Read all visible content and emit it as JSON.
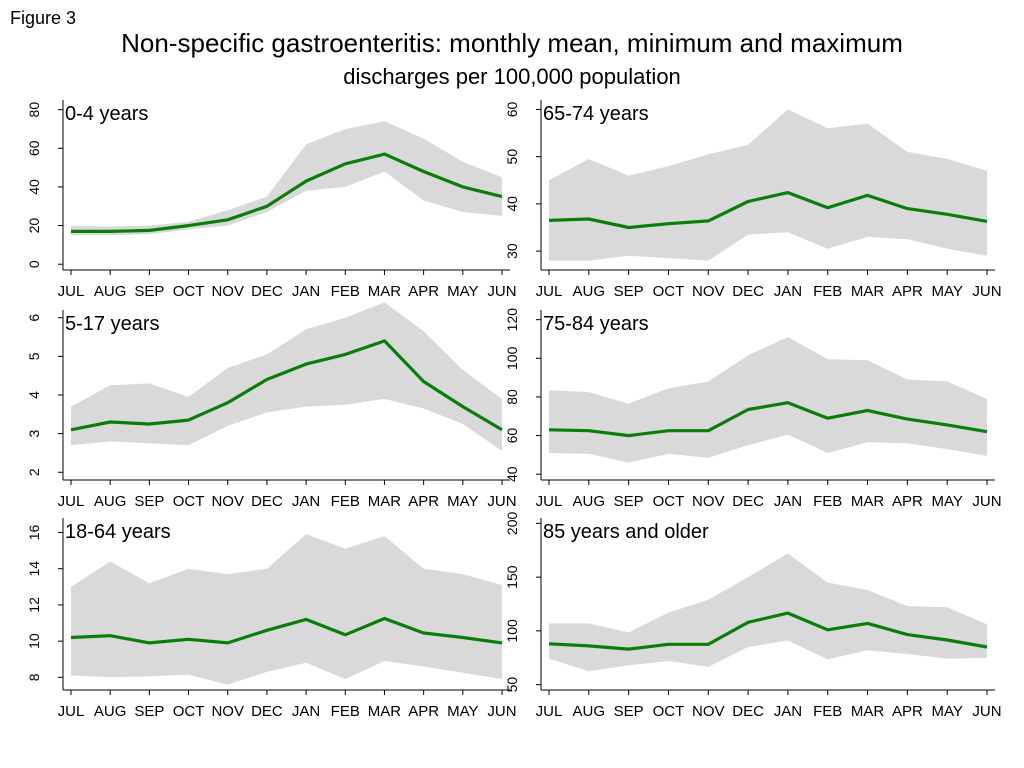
{
  "figure_label": "Figure 3",
  "title": "Non-specific gastroenteritis: monthly mean, minimum and maximum",
  "subtitle": "discharges per 100,000 population",
  "colors": {
    "mean_line": "#0a7d0a",
    "range_band": "#d9d9d9",
    "axis": "#000000"
  },
  "chart_data": [
    {
      "type": "line",
      "panel_label": "0-4 years",
      "categories": [
        "JUL",
        "AUG",
        "SEP",
        "OCT",
        "NOV",
        "DEC",
        "JAN",
        "FEB",
        "MAR",
        "APR",
        "MAY",
        "JUN"
      ],
      "yticks": [
        0,
        20,
        40,
        60,
        80
      ],
      "ylim": [
        -3,
        85
      ],
      "series": [
        {
          "role": "mean",
          "values": [
            17,
            17,
            17.5,
            20,
            23,
            30,
            43,
            52,
            57,
            48,
            40,
            35
          ]
        },
        {
          "role": "min",
          "values": [
            15,
            15,
            15.5,
            18,
            20,
            27,
            38,
            40,
            48,
            33,
            27,
            25
          ]
        },
        {
          "role": "max",
          "values": [
            20,
            19.5,
            20,
            22,
            28,
            35,
            62,
            70,
            74,
            65,
            53,
            45
          ]
        }
      ],
      "grid": false
    },
    {
      "type": "line",
      "panel_label": "65-74 years",
      "categories": [
        "JUL",
        "AUG",
        "SEP",
        "OCT",
        "NOV",
        "DEC",
        "JAN",
        "FEB",
        "MAR",
        "APR",
        "MAY",
        "JUN"
      ],
      "yticks": [
        30,
        40,
        50,
        60
      ],
      "ylim": [
        26,
        62
      ],
      "series": [
        {
          "role": "mean",
          "values": [
            36.5,
            36.8,
            35,
            35.8,
            36.4,
            40.5,
            42.4,
            39.2,
            41.8,
            39,
            37.8,
            36.3
          ]
        },
        {
          "role": "min",
          "values": [
            28,
            28,
            29,
            28.5,
            28,
            33.5,
            34,
            30.5,
            33,
            32.5,
            30.5,
            29
          ]
        },
        {
          "role": "max",
          "values": [
            45,
            49.5,
            46,
            48,
            50.5,
            52.5,
            60,
            56,
            57,
            51,
            49.5,
            47
          ]
        }
      ],
      "grid": false
    },
    {
      "type": "line",
      "panel_label": "5-17 years",
      "categories": [
        "JUL",
        "AUG",
        "SEP",
        "OCT",
        "NOV",
        "DEC",
        "JAN",
        "FEB",
        "MAR",
        "APR",
        "MAY",
        "JUN"
      ],
      "yticks": [
        2,
        3,
        4,
        5,
        6
      ],
      "ylim": [
        1.8,
        6.2
      ],
      "series": [
        {
          "role": "mean",
          "values": [
            3.1,
            3.3,
            3.25,
            3.35,
            3.8,
            4.4,
            4.8,
            5.05,
            5.4,
            4.35,
            3.7,
            3.1
          ]
        },
        {
          "role": "min",
          "values": [
            2.7,
            2.8,
            2.75,
            2.7,
            3.2,
            3.55,
            3.7,
            3.75,
            3.9,
            3.65,
            3.25,
            2.55
          ]
        },
        {
          "role": "max",
          "values": [
            3.7,
            4.25,
            4.3,
            3.95,
            4.7,
            5.05,
            5.7,
            6.0,
            6.4,
            5.65,
            4.65,
            3.9
          ]
        }
      ],
      "grid": false
    },
    {
      "type": "line",
      "panel_label": "75-84 years",
      "categories": [
        "JUL",
        "AUG",
        "SEP",
        "OCT",
        "NOV",
        "DEC",
        "JAN",
        "FEB",
        "MAR",
        "APR",
        "MAY",
        "JUN"
      ],
      "yticks": [
        40,
        60,
        80,
        100,
        120
      ],
      "ylim": [
        37,
        125
      ],
      "series": [
        {
          "role": "mean",
          "values": [
            63,
            62.5,
            60,
            62.5,
            62.5,
            73.5,
            77,
            69,
            73,
            68.5,
            65.5,
            62
          ]
        },
        {
          "role": "min",
          "values": [
            51,
            50.5,
            46,
            50.5,
            48.5,
            55,
            60.5,
            51,
            56.5,
            56,
            53,
            49.5
          ]
        },
        {
          "role": "max",
          "values": [
            83.5,
            82.5,
            76.5,
            84.5,
            88,
            101.5,
            111,
            99.5,
            99,
            89,
            88,
            79
          ]
        }
      ],
      "grid": false
    },
    {
      "type": "line",
      "panel_label": "18-64 years",
      "categories": [
        "JUL",
        "AUG",
        "SEP",
        "OCT",
        "NOV",
        "DEC",
        "JAN",
        "FEB",
        "MAR",
        "APR",
        "MAY",
        "JUN"
      ],
      "yticks": [
        8,
        10,
        12,
        14,
        16
      ],
      "ylim": [
        7.3,
        16.8
      ],
      "series": [
        {
          "role": "mean",
          "values": [
            10.2,
            10.3,
            9.9,
            10.1,
            9.9,
            10.6,
            11.2,
            10.35,
            11.25,
            10.45,
            10.2,
            9.9
          ]
        },
        {
          "role": "min",
          "values": [
            8.1,
            8.0,
            8.05,
            8.15,
            7.6,
            8.3,
            8.8,
            7.9,
            8.9,
            8.6,
            8.25,
            7.9
          ]
        },
        {
          "role": "max",
          "values": [
            13.0,
            14.4,
            13.2,
            14.0,
            13.7,
            14.0,
            15.9,
            15.1,
            15.8,
            14.0,
            13.7,
            13.1
          ]
        }
      ],
      "grid": false
    },
    {
      "type": "line",
      "panel_label": "85 years and older",
      "categories": [
        "JUL",
        "AUG",
        "SEP",
        "OCT",
        "NOV",
        "DEC",
        "JAN",
        "FEB",
        "MAR",
        "APR",
        "MAY",
        "JUN"
      ],
      "yticks": [
        50,
        100,
        150,
        200
      ],
      "ylim": [
        45,
        205
      ],
      "series": [
        {
          "role": "mean",
          "values": [
            88,
            86,
            83,
            87.5,
            87.5,
            108,
            116.5,
            101,
            107,
            96.5,
            91.5,
            85
          ]
        },
        {
          "role": "min",
          "values": [
            74,
            62.5,
            68,
            72,
            66.5,
            85,
            91,
            73.5,
            82,
            78.5,
            74,
            75
          ]
        },
        {
          "role": "max",
          "values": [
            107,
            107,
            98.5,
            117,
            129,
            150,
            172,
            145,
            138,
            123,
            122,
            106
          ]
        }
      ],
      "grid": false
    }
  ]
}
